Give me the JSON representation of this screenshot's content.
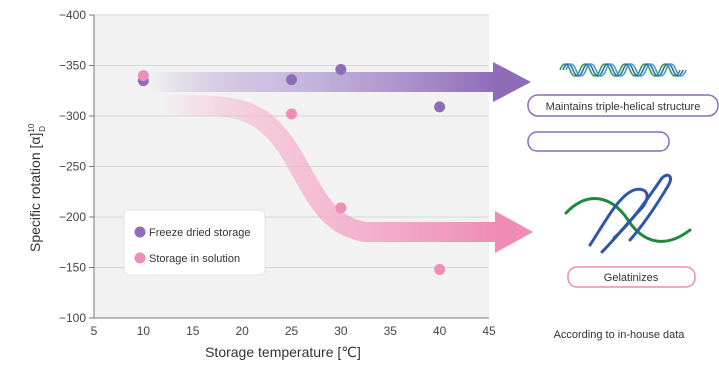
{
  "chart_data": {
    "type": "scatter",
    "title": "",
    "xlabel": "Storage temperature [℃]",
    "ylabel": "Specific rotation [α]",
    "ylabel_sup": "10",
    "ylabel_sub": "D",
    "xlim": [
      5,
      45
    ],
    "ylim": [
      -100,
      -400
    ],
    "y_axis_inverted": true,
    "xticks": [
      5,
      10,
      15,
      20,
      25,
      30,
      35,
      40,
      45
    ],
    "yticks": [
      -100,
      -150,
      -200,
      -250,
      -300,
      -350,
      -400
    ],
    "grid": "horizontal",
    "legend_position": "lower-left",
    "series": [
      {
        "name": "Freeze dried storage",
        "color": "#8e6cb8",
        "x": [
          10,
          25,
          30,
          40
        ],
        "y": [
          -335,
          -336,
          -346,
          -309
        ]
      },
      {
        "name": "Storage in solution",
        "color": "#f08cb8",
        "x": [
          10,
          25,
          30,
          40
        ],
        "y": [
          -340,
          -302,
          -209,
          -148
        ]
      }
    ],
    "annotations": {
      "triple_helix_label": "Maintains triple-helical structure",
      "gelatinize_label": "Gelatinizes",
      "source_note": "According to in-house data"
    }
  }
}
